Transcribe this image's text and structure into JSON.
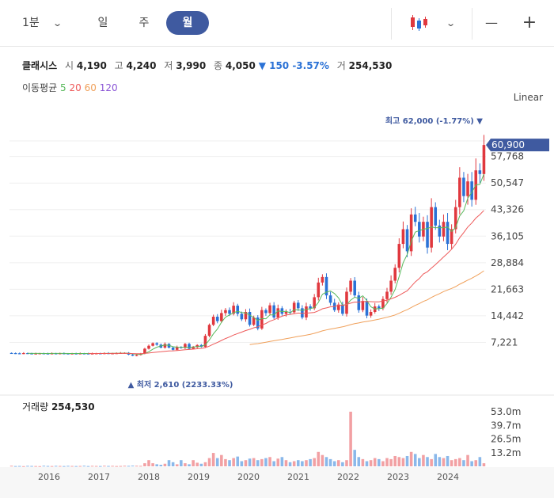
{
  "toolbar": {
    "interval": "1분",
    "tabs": [
      "일",
      "주",
      "월"
    ],
    "active_tab": "월",
    "minus_label": "—",
    "plus_label": "+"
  },
  "quote": {
    "name": "클래시스",
    "open_label": "시",
    "open": "4,190",
    "high_label": "고",
    "high": "4,240",
    "low_label": "저",
    "low": "3,990",
    "close_label": "종",
    "close": "4,050",
    "change": "▼ 150 -3.57%",
    "volume_label": "거",
    "volume": "254,530"
  },
  "moving_average": {
    "label": "이동평균",
    "periods": [
      "5",
      "20",
      "60",
      "120"
    ]
  },
  "scale_mode": "Linear",
  "chart_data": [
    {
      "type": "candlestick",
      "interval": "monthly",
      "y_ticks": [
        "7,221",
        "14,442",
        "21,663",
        "28,884",
        "36,105",
        "43,326",
        "50,547",
        "57,768"
      ],
      "ylim": [
        0,
        62000
      ],
      "x_ticks": [
        "2016",
        "2017",
        "2018",
        "2019",
        "2020",
        "2021",
        "2022",
        "2023",
        "2024"
      ],
      "current_price_label": "60,900",
      "max_annotation": "최고 62,000 (-1.77%) ▼",
      "min_annotation": "▲ 최저 2,610 (2233.33%)",
      "colors": {
        "up": "#e0383e",
        "down": "#2b72d6",
        "ma5": "#59b95c",
        "ma20": "#ee5a5a",
        "ma60": "#f0a05a",
        "ma120": "#8a55d6",
        "accent": "#3f5aa0"
      },
      "series_close": [
        4300,
        4250,
        4200,
        4300,
        4220,
        4150,
        4200,
        4250,
        4200,
        4180,
        4230,
        4200,
        4250,
        4200,
        4150,
        4200,
        4180,
        4220,
        4200,
        4150,
        4200,
        4250,
        4200,
        4300,
        4200,
        4250,
        4300,
        4350,
        4400,
        3900,
        3600,
        3800,
        4200,
        5500,
        6300,
        7000,
        6600,
        5800,
        6800,
        5800,
        5200,
        6000,
        5700,
        6800,
        5500,
        5900,
        6500,
        6000,
        9000,
        12000,
        14200,
        13000,
        15200,
        16000,
        15000,
        17200,
        15000,
        13500,
        15500,
        12000,
        14000,
        11000,
        16000,
        15200,
        17300,
        14000,
        16500,
        15000,
        15500,
        15400,
        18000,
        16500,
        14000,
        17000,
        16500,
        19500,
        23500,
        25000,
        20000,
        18000,
        16000,
        17500,
        15000,
        21000,
        24000,
        20000,
        16000,
        18500,
        14500,
        15500,
        17000,
        16500,
        19000,
        21000,
        24000,
        27500,
        34000,
        38000,
        32000,
        42000,
        40000,
        36000,
        40000,
        33000,
        44000,
        39000,
        36000,
        40000,
        34000,
        38000,
        44000,
        52000,
        47000,
        51000,
        46000,
        54000,
        53000,
        60900
      ],
      "ma_series_note": "5/20/60/120 moving averages computed from series_close"
    },
    {
      "type": "bar",
      "title": "거래량",
      "value_label": "254,530",
      "y_ticks": [
        "13.2m",
        "26.5m",
        "39.7m",
        "53.0m"
      ],
      "ylim": [
        0,
        53000000
      ],
      "volumes_m": [
        0.6,
        0.3,
        0.4,
        0.2,
        0.5,
        0.4,
        0.3,
        0.2,
        0.6,
        0.4,
        0.3,
        0.5,
        0.4,
        0.3,
        0.5,
        0.4,
        0.3,
        0.4,
        0.6,
        0.3,
        0.5,
        0.4,
        0.3,
        0.6,
        0.4,
        0.5,
        0.3,
        0.4,
        0.6,
        0.5,
        0.7,
        0.6,
        0.5,
        3.0,
        6.0,
        3.0,
        2.0,
        1.5,
        2.5,
        6.0,
        4.0,
        2.0,
        6.0,
        3.0,
        2.0,
        6.0,
        3.5,
        2.5,
        4.0,
        8.0,
        13.0,
        8.0,
        11.0,
        7.0,
        6.0,
        8.0,
        9.5,
        5.0,
        6.0,
        7.5,
        8.0,
        6.0,
        7.0,
        8.0,
        9.0,
        5.0,
        7.5,
        9.0,
        6.0,
        4.0,
        5.0,
        6.0,
        5.0,
        6.0,
        7.0,
        8.0,
        14.0,
        11.0,
        9.0,
        7.0,
        5.0,
        6.0,
        4.0,
        6.0,
        53.0,
        16.0,
        9.0,
        7.0,
        5.0,
        6.0,
        8.0,
        7.0,
        5.0,
        8.0,
        7.0,
        10.0,
        9.0,
        8.0,
        10.0,
        14.0,
        12.0,
        8.0,
        11.0,
        9.0,
        7.0,
        12.0,
        9.0,
        8.0,
        10.0,
        6.0,
        7.0,
        8.0,
        6.0,
        11.0,
        5.0,
        6.0,
        9.0,
        3.0
      ]
    }
  ]
}
